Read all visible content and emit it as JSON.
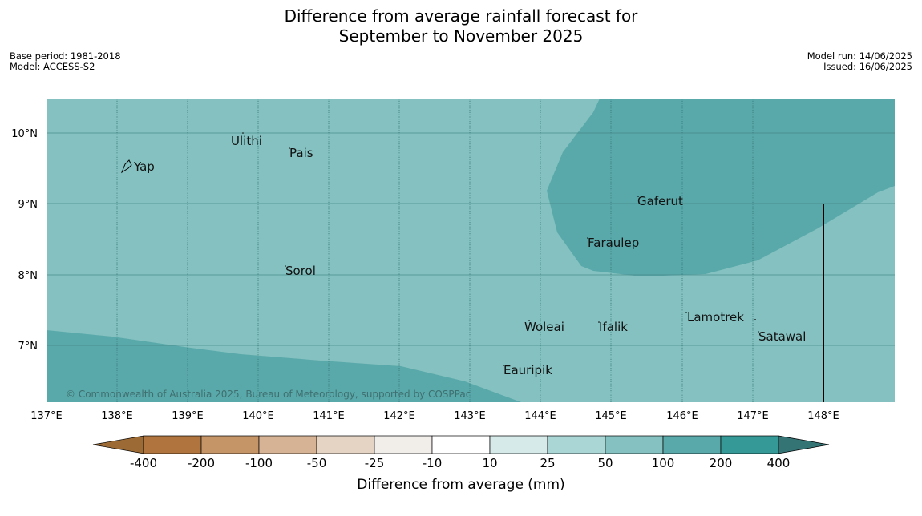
{
  "title_line1": "Difference from average rainfall forecast for",
  "title_line2": "September to November 2025",
  "meta_left": {
    "base_period": "Base period: 1981-2018",
    "model": "Model: ACCESS-S2"
  },
  "meta_right": {
    "model_run": "Model run: 14/06/2025",
    "issued": "Issued: 16/06/2025"
  },
  "map": {
    "copyright": "© Commonwealth of Australia 2025, Bureau of Meteorology, supported by COSPPac",
    "x_ticks": [
      "137°E",
      "138°E",
      "139°E",
      "140°E",
      "141°E",
      "142°E",
      "143°E",
      "144°E",
      "145°E",
      "146°E",
      "147°E",
      "148°E"
    ],
    "y_ticks": [
      "10°N",
      "9°N",
      "8°N",
      "7°N"
    ],
    "places": [
      {
        "name": "Ulithi"
      },
      {
        "name": "Pais"
      },
      {
        "name": "Yap"
      },
      {
        "name": "Gaferut"
      },
      {
        "name": "Faraulep"
      },
      {
        "name": "Sorol"
      },
      {
        "name": "Lamotrek"
      },
      {
        "name": "Woleai"
      },
      {
        "name": "Ifalik"
      },
      {
        "name": "Satawal"
      },
      {
        "name": "Eauripik"
      }
    ],
    "colors": {
      "range_50_100": "#84c1c0",
      "range_100_200": "#5aa9aa"
    }
  },
  "colorbar": {
    "labels": [
      "-400",
      "-200",
      "-100",
      "-50",
      "-25",
      "-10",
      "10",
      "25",
      "50",
      "100",
      "200",
      "400"
    ],
    "colors": [
      "#9c6a35",
      "#b0743e",
      "#c59467",
      "#d6b394",
      "#e5d3c3",
      "#f1eeea",
      "#ffffff",
      "#d6eaea",
      "#abd6d6",
      "#84c1c0",
      "#5aa9aa",
      "#359998",
      "#357475"
    ],
    "title": "Difference from average (mm)"
  }
}
